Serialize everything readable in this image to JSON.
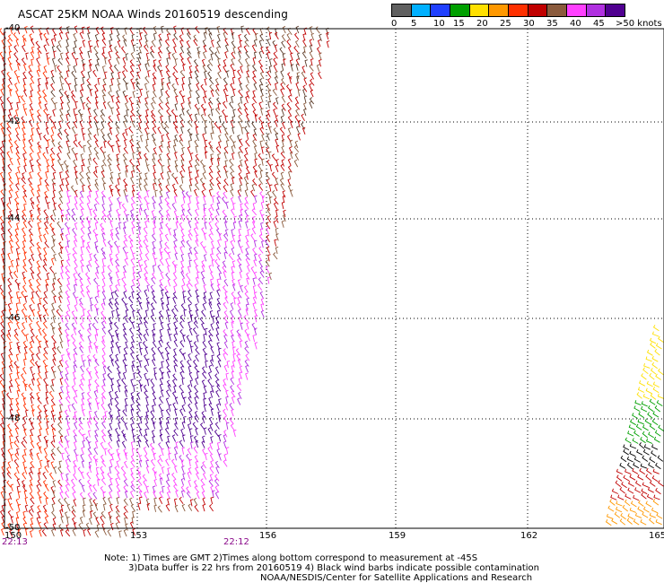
{
  "title": "ASCAT 25KM NOAA Winds 20160519 descending",
  "legend": {
    "colors": [
      "#606060",
      "#00b0ff",
      "#2040ff",
      "#00a000",
      "#ffe000",
      "#ff9800",
      "#ff3000",
      "#c00000",
      "#8a5a3c",
      "#ff40ff",
      "#b030e0",
      "#500090"
    ],
    "labels": [
      "0",
      "5",
      "10",
      "15",
      "20",
      "25",
      "30",
      "35",
      "40",
      "45",
      ">50 knots"
    ]
  },
  "axes": {
    "y_labels": [
      "-40",
      "-42",
      "-44",
      "-46",
      "-48",
      "-50"
    ],
    "x_labels": [
      "150",
      "153",
      "156",
      "159",
      "162",
      "165"
    ],
    "x_range": [
      150,
      165
    ],
    "y_range": [
      -50,
      -40
    ],
    "grid": true
  },
  "pass_times": [
    "22:13",
    "22:12"
  ],
  "notes": [
    "Note: 1) Times are GMT 2)Times along bottom correspond to measurement at -45S",
    "3)Data buffer is 22 hrs from 20160519 4) Black wind barbs indicate possible contamination",
    "NOAA/NESDIS/Center for Satellite Applications and Research"
  ]
}
